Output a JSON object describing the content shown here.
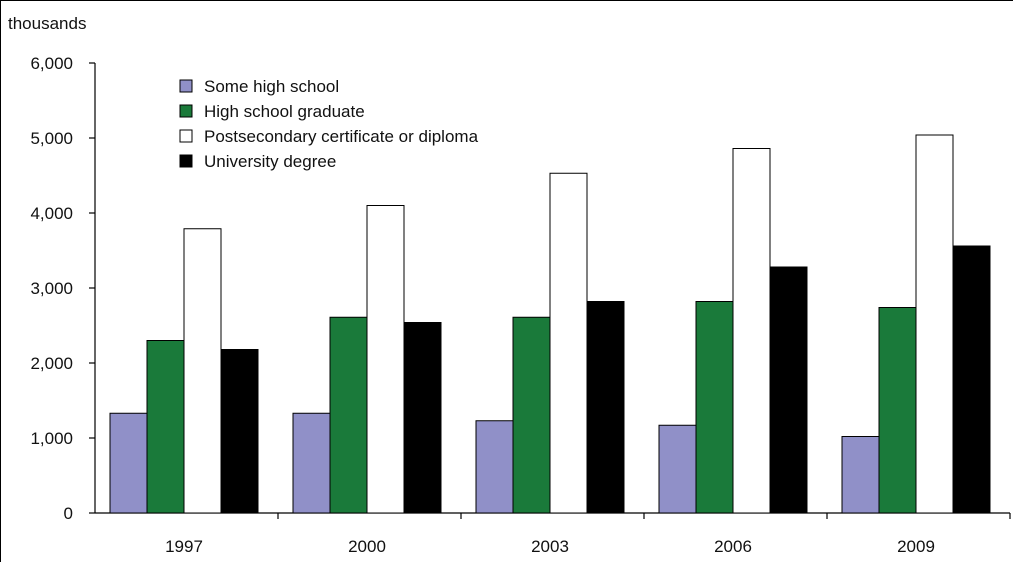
{
  "chart_data": {
    "type": "bar",
    "ylabel": "thousands",
    "ylim": [
      0,
      6000
    ],
    "yticks": [
      "0",
      "1,000",
      "2,000",
      "3,000",
      "4,000",
      "5,000",
      "6,000"
    ],
    "categories": [
      "1997",
      "2000",
      "2003",
      "2006",
      "2009"
    ],
    "series": [
      {
        "name": "Some high school",
        "values": [
          1330,
          1330,
          1230,
          1170,
          1020
        ],
        "color": "#9090c8"
      },
      {
        "name": "High school graduate",
        "values": [
          2300,
          2610,
          2610,
          2820,
          2740
        ],
        "color": "#1a7a3a"
      },
      {
        "name": "Postsecondary certificate or diploma",
        "values": [
          3790,
          4100,
          4530,
          4860,
          5040
        ],
        "color": "#ffffff"
      },
      {
        "name": "University degree",
        "values": [
          2180,
          2540,
          2820,
          3280,
          3560
        ],
        "color": "#000000"
      }
    ],
    "legend_position": "top-left",
    "grid": false
  }
}
